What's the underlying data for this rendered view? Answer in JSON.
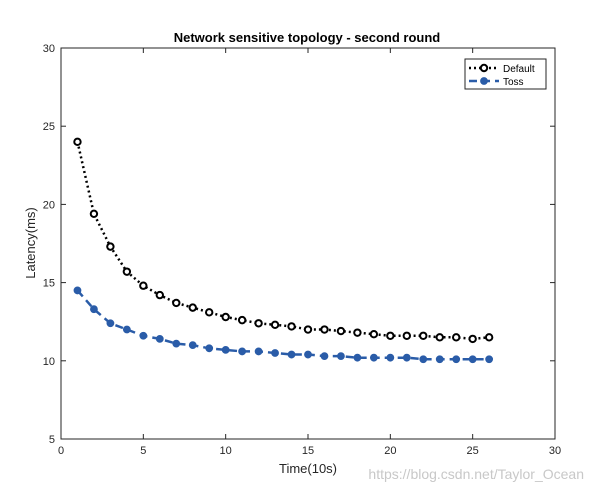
{
  "chart_data": {
    "type": "line",
    "title": "Network sensitive topology - second round",
    "xlabel": "Time(10s)",
    "ylabel": "Latency(ms)",
    "xlim": [
      0,
      30
    ],
    "ylim": [
      5,
      30
    ],
    "xticks": [
      0,
      5,
      10,
      15,
      20,
      25,
      30
    ],
    "yticks": [
      5,
      10,
      15,
      20,
      25,
      30
    ],
    "grid": false,
    "legend_position": "top-right",
    "x": [
      1,
      2,
      3,
      4,
      5,
      6,
      7,
      8,
      9,
      10,
      11,
      12,
      13,
      14,
      15,
      16,
      17,
      18,
      19,
      20,
      21,
      22,
      23,
      24,
      25,
      26
    ],
    "series": [
      {
        "name": "Default",
        "color": "#000000",
        "line_style": "dotted",
        "marker": "open-circle",
        "values": [
          24.0,
          19.4,
          17.3,
          15.7,
          14.8,
          14.2,
          13.7,
          13.4,
          13.1,
          12.8,
          12.6,
          12.4,
          12.3,
          12.2,
          12.0,
          12.0,
          11.9,
          11.8,
          11.7,
          11.6,
          11.6,
          11.6,
          11.5,
          11.5,
          11.4,
          11.5
        ]
      },
      {
        "name": "Toss",
        "color": "#2a5ca8",
        "line_style": "dashed",
        "marker": "filled-circle",
        "values": [
          14.5,
          13.3,
          12.4,
          12.0,
          11.6,
          11.4,
          11.1,
          11.0,
          10.8,
          10.7,
          10.6,
          10.6,
          10.5,
          10.4,
          10.4,
          10.3,
          10.3,
          10.2,
          10.2,
          10.2,
          10.2,
          10.1,
          10.1,
          10.1,
          10.1,
          10.1
        ]
      }
    ]
  },
  "watermark": "https://blog.csdn.net/Taylor_Ocean"
}
